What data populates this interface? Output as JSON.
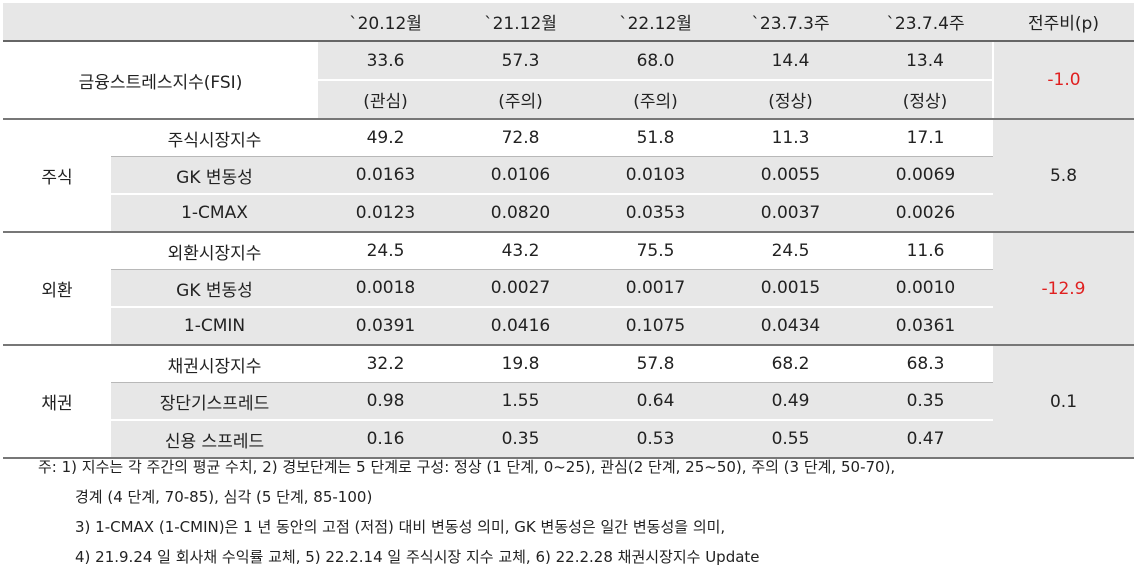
{
  "header": {
    "cols": [
      "`20.12월",
      "`21.12월",
      "`22.12월",
      "`23.7.3주",
      "`23.7.4주",
      "전주비(p)"
    ]
  },
  "fsi": {
    "label": "금융스트레스지수(FSI)",
    "values": [
      "33.6",
      "57.3",
      "68.0",
      "14.4",
      "13.4"
    ],
    "levels": [
      "(관심)",
      "(주의)",
      "(주의)",
      "(정상)",
      "(정상)"
    ],
    "change": "-1.0"
  },
  "groups": [
    {
      "name": "주식",
      "change": "5.8",
      "rows": [
        {
          "label": "주식시장지수",
          "values": [
            "49.2",
            "72.8",
            "51.8",
            "11.3",
            "17.1"
          ]
        },
        {
          "label": "GK 변동성",
          "values": [
            "0.0163",
            "0.0106",
            "0.0103",
            "0.0055",
            "0.0069"
          ]
        },
        {
          "label": "1-CMAX",
          "values": [
            "0.0123",
            "0.0820",
            "0.0353",
            "0.0037",
            "0.0026"
          ]
        }
      ]
    },
    {
      "name": "외환",
      "change": "-12.9",
      "rows": [
        {
          "label": "외환시장지수",
          "values": [
            "24.5",
            "43.2",
            "75.5",
            "24.5",
            "11.6"
          ]
        },
        {
          "label": "GK 변동성",
          "values": [
            "0.0018",
            "0.0027",
            "0.0017",
            "0.0015",
            "0.0010"
          ]
        },
        {
          "label": "1-CMIN",
          "values": [
            "0.0391",
            "0.0416",
            "0.1075",
            "0.0434",
            "0.0361"
          ]
        }
      ]
    },
    {
      "name": "채권",
      "change": "0.1",
      "rows": [
        {
          "label": "채권시장지수",
          "values": [
            "32.2",
            "19.8",
            "57.8",
            "68.2",
            "68.3"
          ]
        },
        {
          "label": "장단기스프레드",
          "values": [
            "0.98",
            "1.55",
            "0.64",
            "0.49",
            "0.35"
          ]
        },
        {
          "label": "신용 스프레드",
          "values": [
            "0.16",
            "0.35",
            "0.53",
            "0.55",
            "0.47"
          ]
        }
      ]
    }
  ],
  "notes": [
    "주: 1) 지수는 각 주간의 평균 수치, 2) 경보단계는 5 단계로 구성: 정상 (1 단계, 0~25), 관심(2 단계, 25~50), 주의 (3 단계, 50-70),",
    "경계 (4 단계, 70-85), 심각 (5 단계, 85-100)",
    "3) 1-CMAX (1-CMIN)은 1 년 동안의 고점 (저점) 대비 변동성 의미, GK 변동성은 일간 변동성을 의미,",
    "4) 21.9.24 일 회사채 수익률 교체, 5) 22.2.14 일 주식시장 지수 교체, 6) 22.2.28 채권시장지수 Update"
  ],
  "colors": {
    "negative": "#e02020",
    "band": "#e7e7e7"
  }
}
